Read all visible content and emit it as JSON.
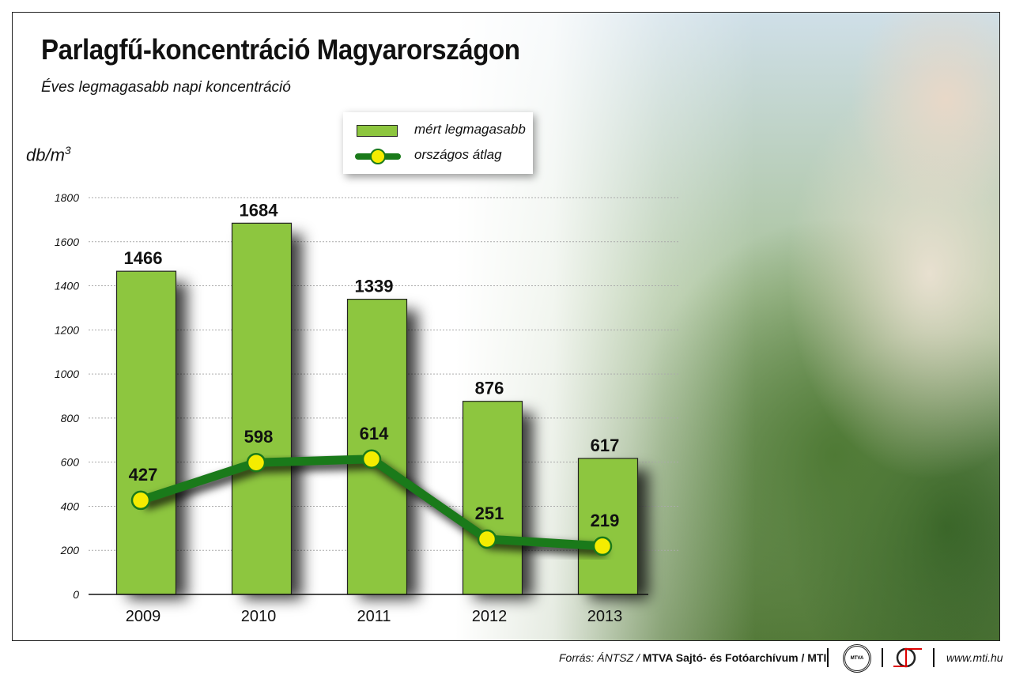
{
  "title": "Parlagfű-koncentráció Magyarországon",
  "subtitle": "Éves legmagasabb napi koncentráció",
  "footer": {
    "source_prefix": "Forrás: ÁNTSZ / ",
    "source_bold": "MTVA Sajtó- és Fotóarchívum / MTI",
    "mtva_logo": "MTVA",
    "url": "www.mti.hu"
  },
  "colors": {
    "bar": "#8dc63f",
    "line": "#1a7a1a",
    "dot": "#f5ec00"
  },
  "chart_data": {
    "type": "bar",
    "title": "Parlagfű-koncentráció Magyarországon",
    "ylabel": "db/m3",
    "ylabel_main": "db/m",
    "ylabel_sup": "3",
    "ylim": [
      0,
      1800
    ],
    "yticks": [
      "0",
      "200",
      "400",
      "600",
      "800",
      "1000",
      "1200",
      "1400",
      "1600",
      "1800"
    ],
    "categories": [
      "2009",
      "2010",
      "2011",
      "2012",
      "2013"
    ],
    "legend": "top-center",
    "series": [
      {
        "name": "mért legmagasabb",
        "type": "bar",
        "values": [
          1466,
          1684,
          1339,
          876,
          617
        ]
      },
      {
        "name": "országos átlag",
        "type": "line",
        "values": [
          427,
          598,
          614,
          251,
          219
        ]
      }
    ]
  }
}
